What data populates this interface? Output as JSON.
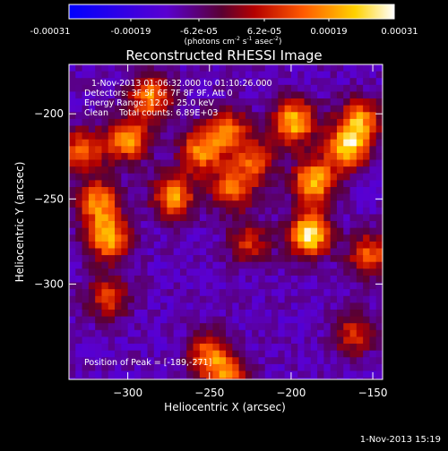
{
  "colorbar": {
    "tick_labels": [
      "-0.00031",
      "-0.00019",
      "-6.2e-05",
      "6.2e-05",
      "0.00019",
      "0.00031"
    ],
    "range": [
      -0.00031,
      0.00031
    ],
    "unit_label": "(photons cm",
    "unit_sup1": "-2",
    "unit_mid": " s",
    "unit_sup2": "-1",
    "unit_tail": " asec",
    "unit_sup3": "-2",
    "unit_close": ")",
    "colors": [
      "#0000ff",
      "#5a00d0",
      "#5a0032",
      "#b40000",
      "#ff5a00",
      "#ffd200",
      "#ffffff"
    ]
  },
  "title": "Reconstructed RHESSI Image",
  "annotations": {
    "time": "1-Nov-2013 01:06:32.000 to 01:10:26.000",
    "detectors": "Detectors: 3F 5F 6F 7F 8F 9F, Att 0",
    "energy": "Energy Range: 12.0 - 25.0 keV",
    "clean": "Clean    Total counts: 6.89E+03",
    "peak": "Position of Peak = [-189,-271]"
  },
  "footer_timestamp": "1-Nov-2013 15:19",
  "chart_data": {
    "type": "heatmap",
    "title": "Reconstructed RHESSI Image",
    "xlabel": "Heliocentric X (arcsec)",
    "ylabel": "Heliocentric Y (arcsec)",
    "xlim": [
      -336,
      -144
    ],
    "ylim": [
      -356,
      -171
    ],
    "x_ticks": [
      -300,
      -250,
      -200,
      -150
    ],
    "y_ticks": [
      -200,
      -250,
      -300
    ],
    "peak": {
      "x": -189,
      "y": -271
    },
    "bright_sources": [
      {
        "x": -328,
        "y": -222,
        "level": 0.65
      },
      {
        "x": -318,
        "y": -252,
        "level": 0.7
      },
      {
        "x": -312,
        "y": -273,
        "level": 0.8
      },
      {
        "x": -300,
        "y": -215,
        "level": 0.75
      },
      {
        "x": -286,
        "y": -190,
        "level": 0.7
      },
      {
        "x": -272,
        "y": -248,
        "level": 0.75
      },
      {
        "x": -255,
        "y": -222,
        "level": 0.7
      },
      {
        "x": -238,
        "y": -210,
        "level": 0.6
      },
      {
        "x": -236,
        "y": -244,
        "level": 0.6
      },
      {
        "x": -222,
        "y": -228,
        "level": 0.55
      },
      {
        "x": -226,
        "y": -276,
        "level": 0.45
      },
      {
        "x": -198,
        "y": -205,
        "level": 0.85
      },
      {
        "x": -189,
        "y": -271,
        "level": 1.0
      },
      {
        "x": -186,
        "y": -240,
        "level": 0.85
      },
      {
        "x": -166,
        "y": -220,
        "level": 0.85
      },
      {
        "x": -158,
        "y": -204,
        "level": 0.7
      },
      {
        "x": -152,
        "y": -283,
        "level": 0.6
      },
      {
        "x": -312,
        "y": -308,
        "level": 0.5
      },
      {
        "x": -250,
        "y": -342,
        "level": 0.65
      },
      {
        "x": -238,
        "y": -356,
        "level": 0.6
      },
      {
        "x": -162,
        "y": -330,
        "level": 0.45
      }
    ]
  }
}
